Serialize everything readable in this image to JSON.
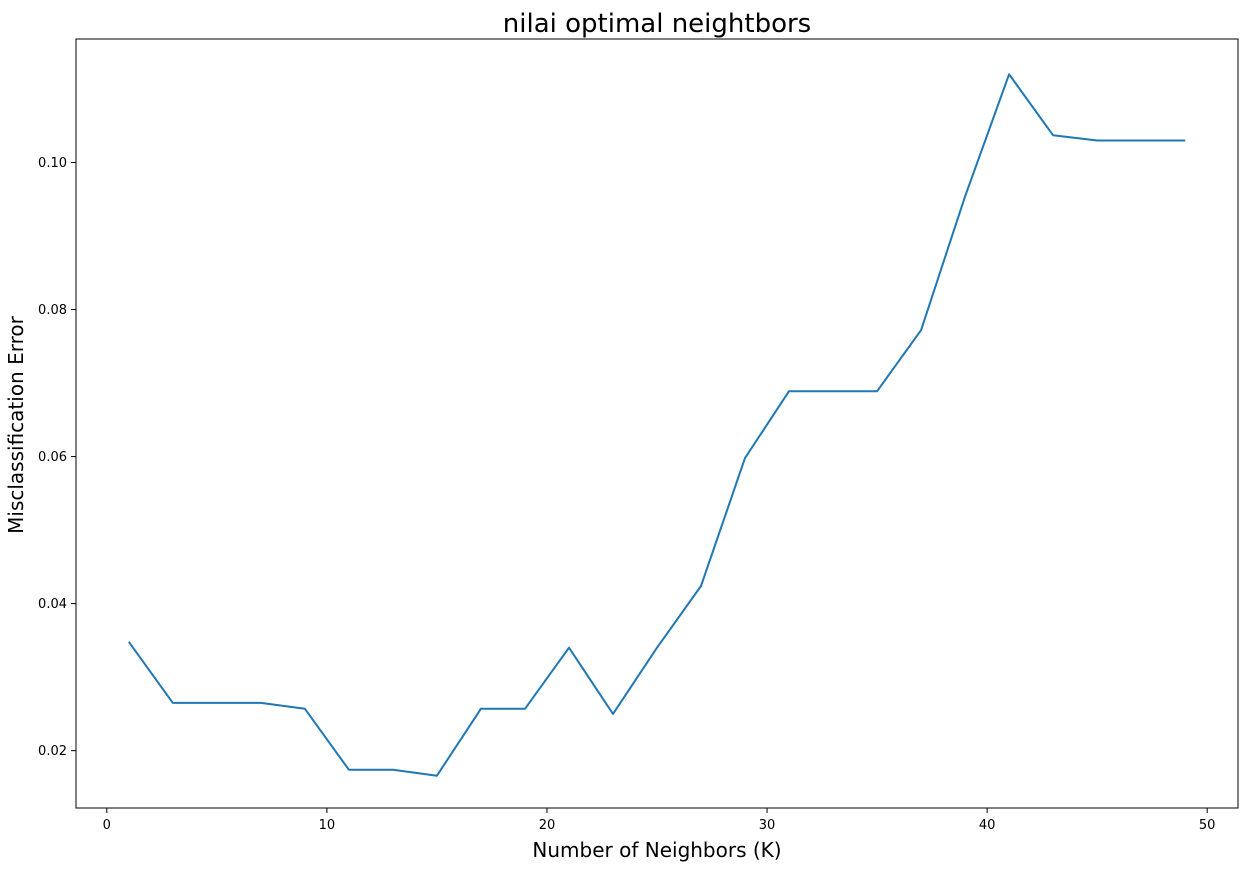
{
  "chart_data": {
    "type": "line",
    "title": "nilai optimal neightbors",
    "xlabel": "Number of Neighbors (K)",
    "ylabel": "Misclassification Error",
    "xlim": [
      -1.4,
      51.4
    ],
    "ylim": [
      0.0122,
      0.1168
    ],
    "xticks": [
      0,
      10,
      20,
      30,
      40,
      50
    ],
    "yticks": [
      0.02,
      0.04,
      0.06,
      0.08,
      0.1
    ],
    "ytick_labels": [
      "0.02",
      "0.04",
      "0.06",
      "0.08",
      "0.10"
    ],
    "grid": false,
    "line_color": "#1f77b4",
    "series": [
      {
        "x": [
          1,
          3,
          5,
          7,
          9,
          11,
          13,
          15,
          17,
          19,
          21,
          23,
          25,
          27,
          29,
          31,
          33,
          35,
          37,
          39,
          41,
          43,
          45,
          47,
          49
        ],
        "values": [
          0.0348,
          0.0265,
          0.0265,
          0.0265,
          0.0257,
          0.0174,
          0.0174,
          0.0166,
          0.0257,
          0.0257,
          0.034,
          0.025,
          0.034,
          0.0424,
          0.0598,
          0.0689,
          0.0689,
          0.0689,
          0.0772,
          0.0954,
          0.112,
          0.1037,
          0.103,
          0.103,
          0.103
        ]
      }
    ]
  }
}
